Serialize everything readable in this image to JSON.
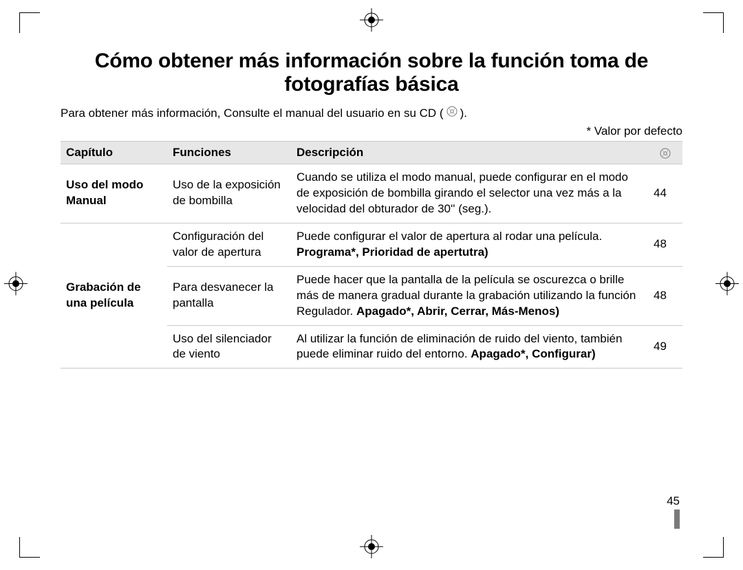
{
  "title": "Cómo obtener más información sobre la función toma de fotografías básica",
  "intro_before": "Para obtener más información, Consulte el manual del usuario en su CD (",
  "intro_after": ").",
  "default_note": "* Valor por defecto",
  "headers": {
    "chapter": "Capítulo",
    "functions": "Funciones",
    "description": "Descripción"
  },
  "rows": [
    {
      "chapter": "Uso del modo Manual",
      "func": "Uso de la exposición de bombilla",
      "desc_plain": "Cuando se utiliza el modo manual, puede configurar en el modo de exposición de bombilla girando el selector una vez más a la velocidad del obturador de 30'' (seg.).",
      "desc_bold": "",
      "page": "44",
      "rowspan": 1
    },
    {
      "chapter": "Grabación de una película",
      "func": "Configuración del valor de apertura",
      "desc_plain": "Puede configurar el valor de apertura al rodar una película. ",
      "desc_bold": "Programa*, Prioridad de apertutra)",
      "page": "48",
      "rowspan": 3
    },
    {
      "func": "Para desvanecer la pantalla",
      "desc_plain": "Puede hacer que la pantalla de la película se oscurezca o brille más de manera gradual durante la grabación utilizando la función Regulador. ",
      "desc_bold": "Apagado*, Abrir, Cerrar, Más-Menos)",
      "page": "48"
    },
    {
      "func": "Uso del silenciador de viento",
      "desc_plain": "Al utilizar la función de eliminación de ruido del viento, también puede eliminar ruido del entorno. ",
      "desc_bold": "Apagado*, Configurar)",
      "page": "49"
    }
  ],
  "page_number": "45",
  "colors": {
    "header_bg": "#e7e7e7",
    "border": "#c9c9c9",
    "text": "#000000",
    "page_bar": "#7a7a7a"
  },
  "icons": {
    "cd": "cd-icon",
    "registration": "registration-mark"
  }
}
